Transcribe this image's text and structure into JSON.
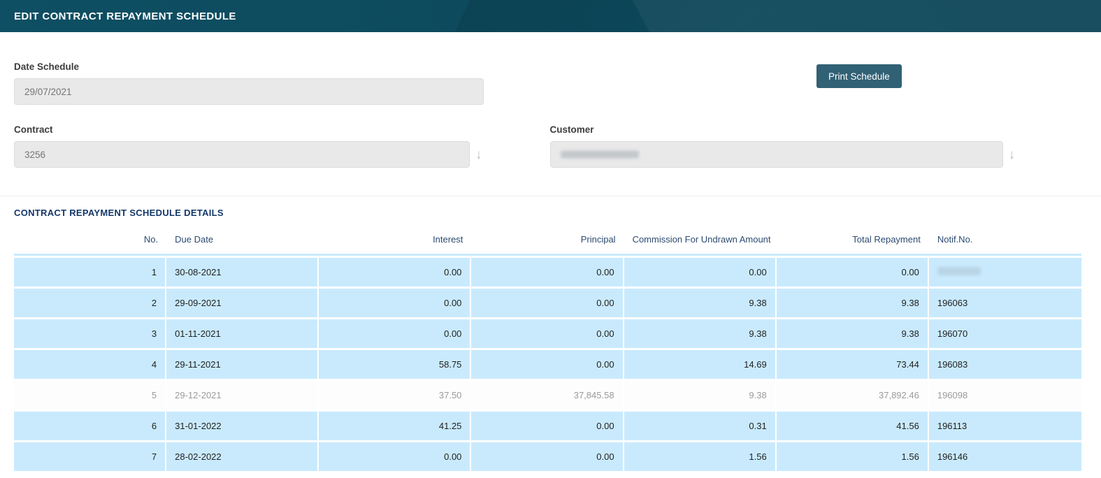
{
  "titlebar": {
    "title": "EDIT CONTRACT REPAYMENT SCHEDULE"
  },
  "form": {
    "date_schedule_label": "Date Schedule",
    "date_schedule_value": "29/07/2021",
    "print_schedule_label": "Print Schedule",
    "contract_label": "Contract",
    "contract_value": "3256",
    "customer_label": "Customer",
    "customer_value": ""
  },
  "details": {
    "section_title": "CONTRACT REPAYMENT SCHEDULE DETAILS",
    "columns": {
      "no": "No.",
      "due_date": "Due Date",
      "interest": "Interest",
      "principal": "Principal",
      "commission": "Commission For Undrawn Amount",
      "total": "Total Repayment",
      "notif": "Notif.No."
    },
    "rows": [
      {
        "no": "1",
        "due_date": "30-08-2021",
        "interest": "0.00",
        "principal": "0.00",
        "commission": "0.00",
        "total": "0.00",
        "notif": ""
      },
      {
        "no": "2",
        "due_date": "29-09-2021",
        "interest": "0.00",
        "principal": "0.00",
        "commission": "9.38",
        "total": "9.38",
        "notif": "196063"
      },
      {
        "no": "3",
        "due_date": "01-11-2021",
        "interest": "0.00",
        "principal": "0.00",
        "commission": "9.38",
        "total": "9.38",
        "notif": "196070"
      },
      {
        "no": "4",
        "due_date": "29-11-2021",
        "interest": "58.75",
        "principal": "0.00",
        "commission": "14.69",
        "total": "73.44",
        "notif": "196083"
      },
      {
        "no": "5",
        "due_date": "29-12-2021",
        "interest": "37.50",
        "principal": "37,845.58",
        "commission": "9.38",
        "total": "37,892.46",
        "notif": "196098"
      },
      {
        "no": "6",
        "due_date": "31-01-2022",
        "interest": "41.25",
        "principal": "0.00",
        "commission": "0.31",
        "total": "41.56",
        "notif": "196113"
      },
      {
        "no": "7",
        "due_date": "28-02-2022",
        "interest": "0.00",
        "principal": "0.00",
        "commission": "1.56",
        "total": "1.56",
        "notif": "196146"
      }
    ]
  },
  "colors": {
    "titlebar_bg": "#0d4b5f",
    "button_bg": "#316175",
    "row_highlight": "#c9eafd",
    "table_header_text": "#2c4a70",
    "section_title_text": "#14386b",
    "input_bg": "#e9e9e9"
  }
}
